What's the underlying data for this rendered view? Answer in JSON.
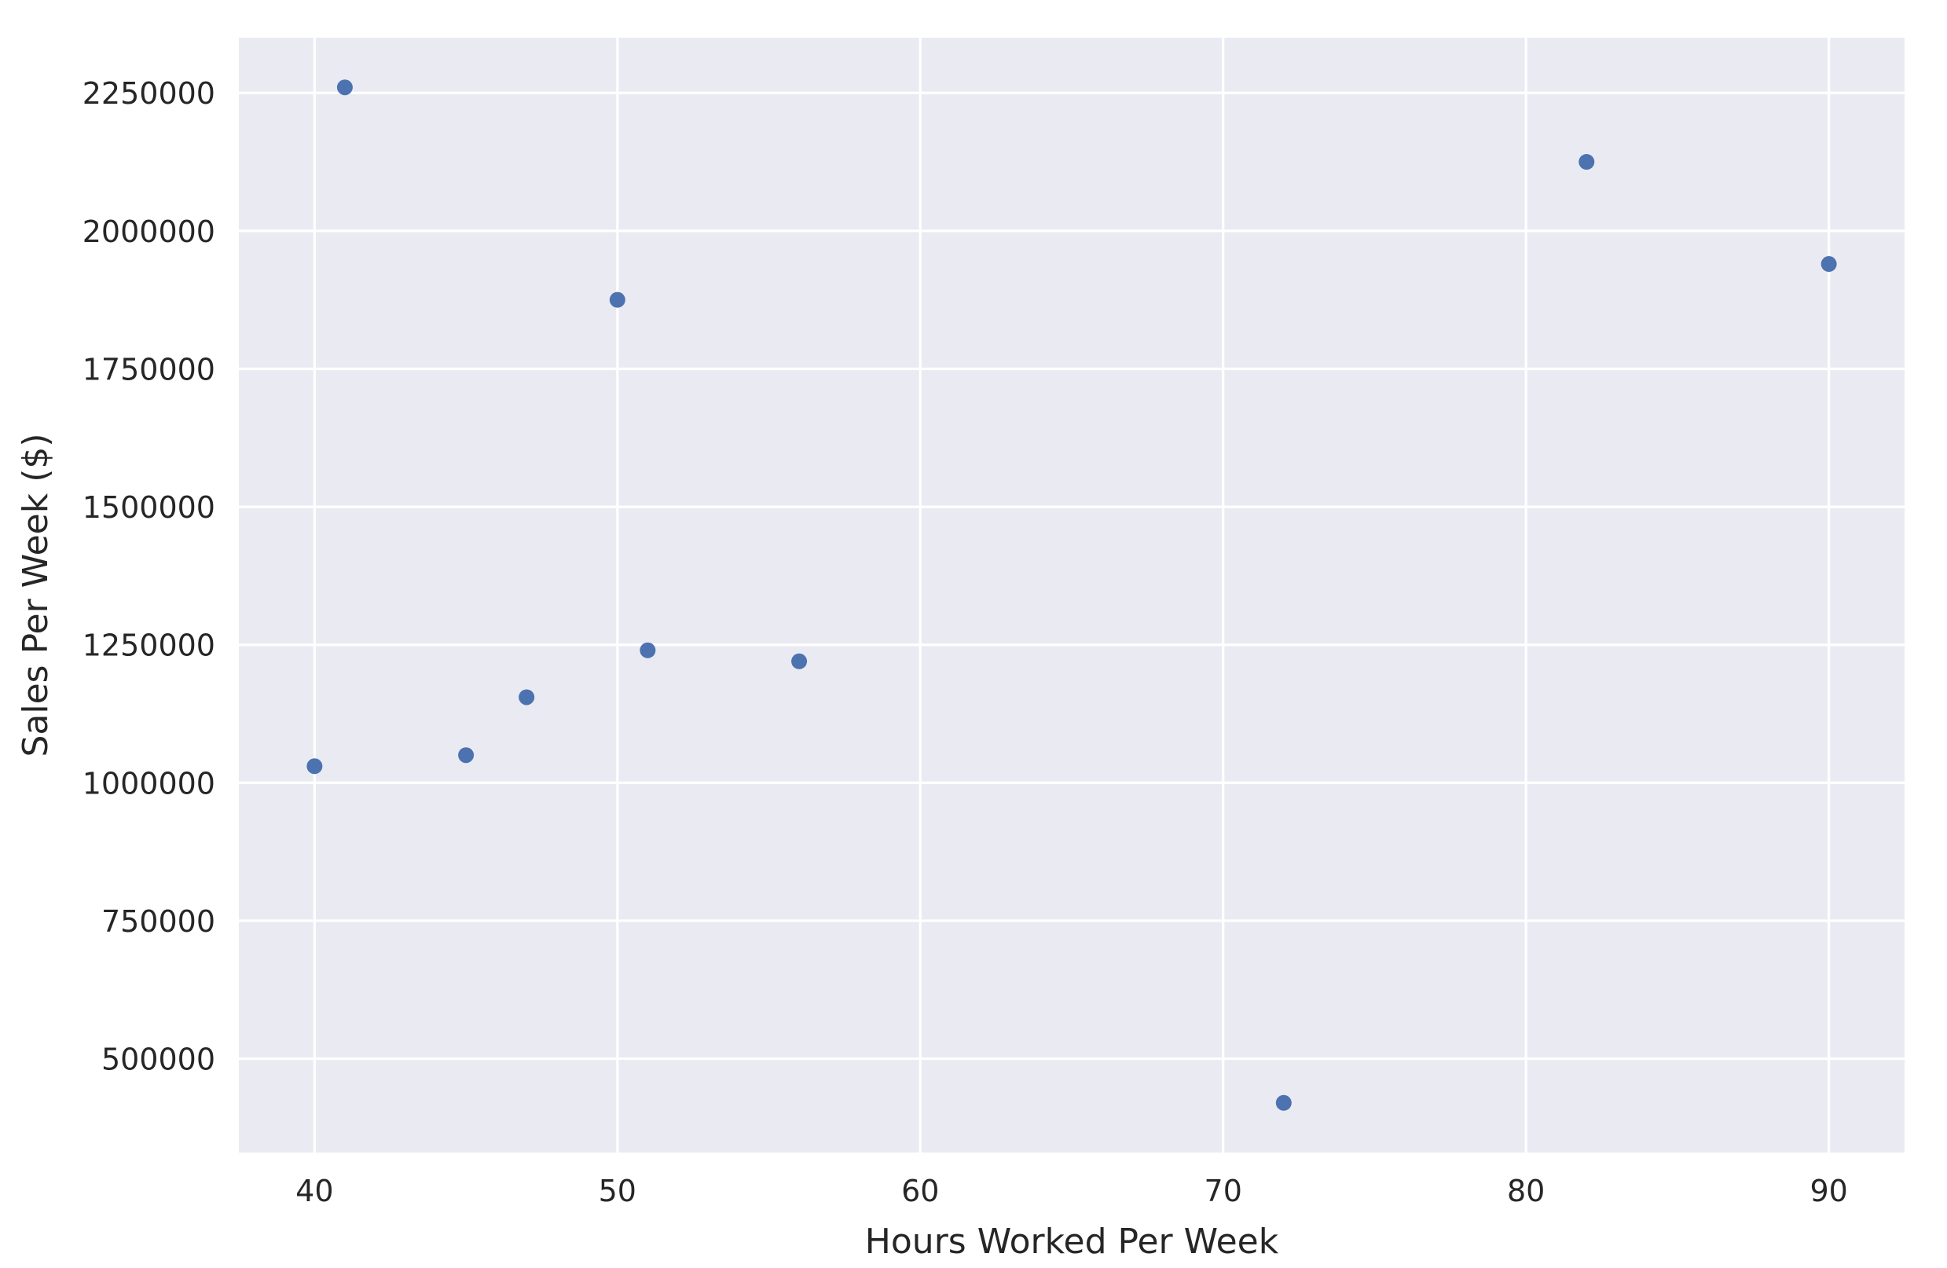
{
  "chart_data": {
    "type": "scatter",
    "title": "",
    "xlabel": "Hours Worked Per Week",
    "ylabel": "Sales Per Week ($)",
    "xlim": [
      37.5,
      92.5
    ],
    "ylim": [
      330000,
      2350000
    ],
    "xticks": [
      40,
      50,
      60,
      70,
      80,
      90
    ],
    "xtick_labels": [
      "40",
      "50",
      "60",
      "70",
      "80",
      "90"
    ],
    "yticks": [
      500000,
      750000,
      1000000,
      1250000,
      1500000,
      1750000,
      2000000,
      2250000
    ],
    "ytick_labels": [
      "500000",
      "750000",
      "1000000",
      "1250000",
      "1500000",
      "1750000",
      "2000000",
      "2250000"
    ],
    "grid": true,
    "background": "#eaeaf2",
    "marker_color": "#4c72b0",
    "series": [
      {
        "x": [
          40,
          41,
          45,
          47,
          50,
          51,
          56,
          72,
          82,
          90
        ],
        "y": [
          1030000,
          2260000,
          1050000,
          1155000,
          1875000,
          1240000,
          1220000,
          420000,
          2125000,
          1940000
        ]
      }
    ]
  }
}
